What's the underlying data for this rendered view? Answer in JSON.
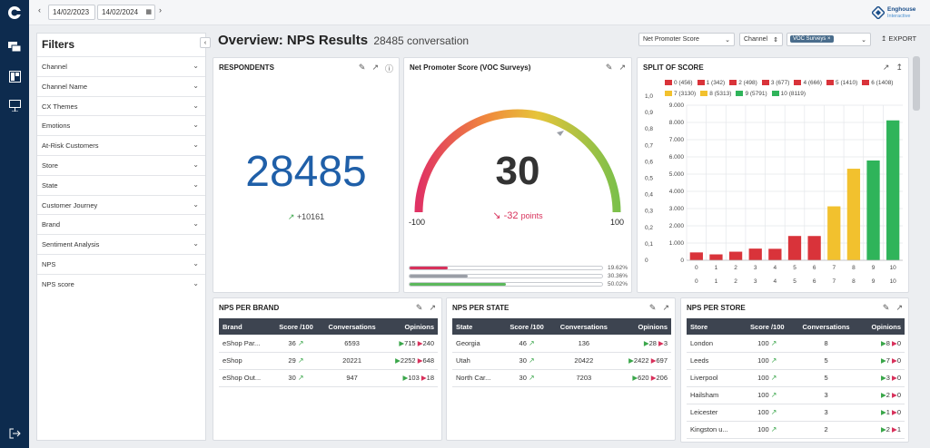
{
  "nav": {
    "items": [
      "chat",
      "dashboard",
      "presentation"
    ]
  },
  "dates": {
    "from": "14/02/2023",
    "to": "14/02/2024"
  },
  "logo": {
    "line1": "Enghouse",
    "line2": "Interactive"
  },
  "filters": {
    "title": "Filters",
    "items": [
      "Channel",
      "Channel Name",
      "CX Themes",
      "Emotions",
      "At-Risk Customers",
      "Store",
      "State",
      "Customer Journey",
      "Brand",
      "Sentiment Analysis",
      "NPS",
      "NPS score"
    ]
  },
  "header": {
    "title": "Overview: NPS Results",
    "subtitle": "28485 conversation"
  },
  "controls": {
    "metric": "Net Promoter Score",
    "channel": "Channel",
    "tag": "VOC Surveys",
    "export": "EXPORT"
  },
  "respondents": {
    "title": "RESPONDENTS",
    "value": "28485",
    "change": "+10161"
  },
  "nps": {
    "title": "Net Promoter Score (VOC Surveys)",
    "value": "30",
    "delta": "-32",
    "delta_unit": "points",
    "min": "-100",
    "max": "100",
    "bars": [
      {
        "pct": "19.62%",
        "value": 19.62,
        "color": "#d8315b"
      },
      {
        "pct": "30.36%",
        "value": 30.36,
        "color": "#9a9ea6"
      },
      {
        "pct": "50.02%",
        "value": 50.02,
        "color": "#5cb85c"
      }
    ]
  },
  "split": {
    "title": "SPLIT OF SCORE",
    "legend": [
      "0 (456)",
      "1 (342)",
      "2 (498)",
      "3 (677)",
      "4 (666)",
      "5 (1410)",
      "6 (1408)",
      "7 (3130)",
      "8 (5313)",
      "9 (5791)",
      "10 (8119)"
    ],
    "left_ticks": [
      "1,0",
      "0,9",
      "0,8",
      "0,7",
      "0,6",
      "0,5",
      "0,4",
      "0,3",
      "0,2",
      "0,1",
      "0"
    ],
    "right_ticks": [
      "9.000",
      "8.000",
      "7.000",
      "6.000",
      "5.000",
      "4.000",
      "3.000",
      "2.000",
      "1.000",
      "0"
    ],
    "bottom_labels": [
      "0",
      "1",
      "2",
      "3",
      "4",
      "5",
      "6",
      "7",
      "8",
      "9",
      "10"
    ]
  },
  "chart_data": {
    "type": "bar",
    "title": "SPLIT OF SCORE",
    "categories": [
      "0",
      "1",
      "2",
      "3",
      "4",
      "5",
      "6",
      "7",
      "8",
      "9",
      "10"
    ],
    "values": [
      456,
      342,
      498,
      677,
      666,
      1410,
      1408,
      3130,
      5313,
      5791,
      8119
    ],
    "colors": [
      "#d9333a",
      "#d9333a",
      "#d9333a",
      "#d9333a",
      "#d9333a",
      "#d9333a",
      "#d9333a",
      "#f2c12e",
      "#f2c12e",
      "#2fb45a",
      "#2fb45a"
    ],
    "ylim": [
      0,
      9000
    ],
    "grid": true,
    "legend": "top"
  },
  "brand": {
    "title": "NPS PER BRAND",
    "headers": [
      "Brand",
      "Score /100",
      "Conversations",
      "Opinions"
    ],
    "rows": [
      {
        "name": "eShop Par...",
        "score": "36",
        "conv": "6593",
        "pos": "715",
        "neg": "240"
      },
      {
        "name": "eShop",
        "score": "29",
        "conv": "20221",
        "pos": "2252",
        "neg": "648"
      },
      {
        "name": "eShop Out...",
        "score": "30",
        "conv": "947",
        "pos": "103",
        "neg": "18"
      }
    ]
  },
  "state": {
    "title": "NPS PER STATE",
    "headers": [
      "State",
      "Score /100",
      "Conversations",
      "Opinions"
    ],
    "rows": [
      {
        "name": "Georgia",
        "score": "46",
        "conv": "136",
        "pos": "28",
        "neg": "3"
      },
      {
        "name": "Utah",
        "score": "30",
        "conv": "20422",
        "pos": "2422",
        "neg": "697"
      },
      {
        "name": "North Car...",
        "score": "30",
        "conv": "7203",
        "pos": "620",
        "neg": "206"
      }
    ]
  },
  "store": {
    "title": "NPS PER STORE",
    "headers": [
      "Store",
      "Score /100",
      "Conversations",
      "Opinions"
    ],
    "rows": [
      {
        "name": "London",
        "score": "100",
        "conv": "8",
        "pos": "8",
        "neg": "0"
      },
      {
        "name": "Leeds",
        "score": "100",
        "conv": "5",
        "pos": "7",
        "neg": "0"
      },
      {
        "name": "Liverpool",
        "score": "100",
        "conv": "5",
        "pos": "3",
        "neg": "0"
      },
      {
        "name": "Hailsham",
        "score": "100",
        "conv": "3",
        "pos": "2",
        "neg": "0"
      },
      {
        "name": "Leicester",
        "score": "100",
        "conv": "3",
        "pos": "1",
        "neg": "0"
      },
      {
        "name": "Kingston u...",
        "score": "100",
        "conv": "2",
        "pos": "2",
        "neg": "1"
      }
    ]
  }
}
